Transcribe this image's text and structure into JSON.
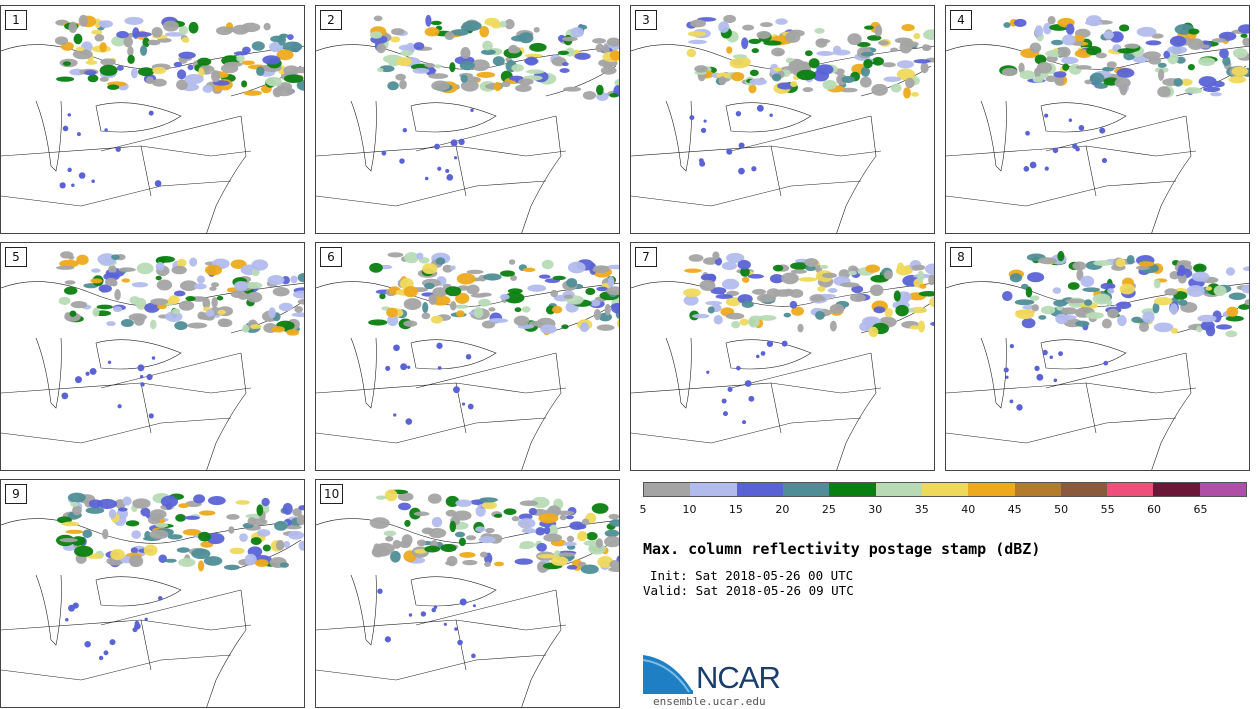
{
  "panels": [
    {
      "label": "1"
    },
    {
      "label": "2"
    },
    {
      "label": "3"
    },
    {
      "label": "4"
    },
    {
      "label": "5"
    },
    {
      "label": "6"
    },
    {
      "label": "7"
    },
    {
      "label": "8"
    },
    {
      "label": "9"
    },
    {
      "label": "10"
    }
  ],
  "colorbar": {
    "ticks": [
      "5",
      "10",
      "15",
      "20",
      "25",
      "30",
      "35",
      "40",
      "45",
      "50",
      "55",
      "60",
      "65"
    ],
    "colors": [
      "#a4a4a4",
      "#b2bcec",
      "#5a63d6",
      "#4f8e97",
      "#0a8010",
      "#b8dbb6",
      "#efd95c",
      "#eeaa1c",
      "#b57b2c",
      "#8b5a3d",
      "#ef4f7b",
      "#6b1737",
      "#b04fa8"
    ]
  },
  "title": "Max. column reflectivity postage stamp (dBZ)",
  "init": "Init: Sat 2018-05-26 00 UTC",
  "valid": "Valid: Sat 2018-05-26 09 UTC",
  "logo": {
    "text": "NCAR",
    "site": "ensemble.ucar.edu"
  }
}
